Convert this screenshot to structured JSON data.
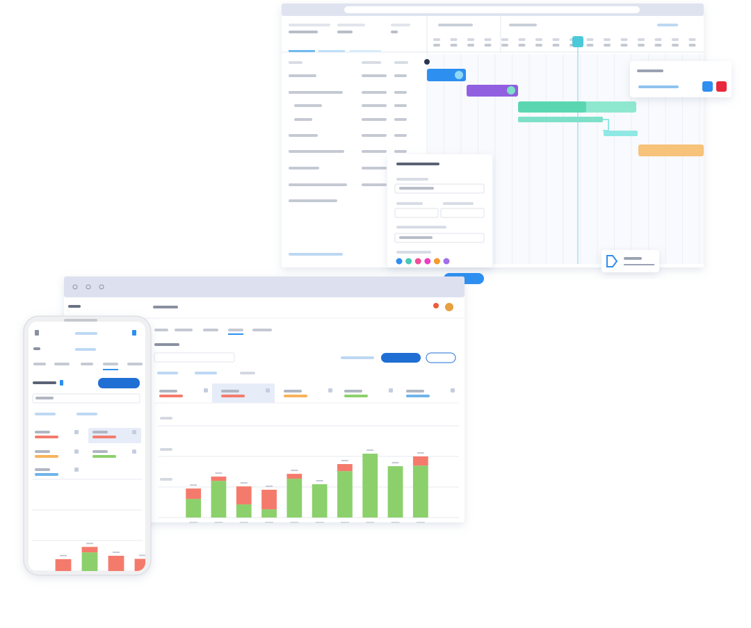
{
  "chart_data": [
    {
      "type": "stacked-bar",
      "ylim": [
        0,
        3
      ],
      "yticks": [
        0,
        1,
        2,
        3
      ],
      "grid": true,
      "categories": [
        null,
        null,
        null,
        null,
        null,
        null,
        null,
        null,
        null,
        null
      ],
      "series": [
        {
          "color": "#8cd06c",
          "values": [
            0.61,
            1.2,
            0.43,
            0.27,
            1.27,
            1.09,
            1.52,
            2.09,
            1.68,
            1.7
          ]
        },
        {
          "color": "#f47b6c",
          "values": [
            0.34,
            0.14,
            0.59,
            0.64,
            0.16,
            0,
            0.23,
            0,
            0,
            0.3
          ]
        }
      ]
    },
    {
      "type": "stacked-bar",
      "ylim": [
        0,
        3
      ],
      "yticks": [
        0,
        1,
        2,
        3
      ],
      "grid": true,
      "categories": [
        null,
        null,
        null,
        null
      ],
      "series": [
        {
          "color": "#8cd06c",
          "values": [
            0,
            0.61,
            0,
            0
          ]
        },
        {
          "color": "#f47b6c",
          "values": [
            0.39,
            0.18,
            0.5,
            0.4
          ]
        }
      ]
    }
  ]
}
